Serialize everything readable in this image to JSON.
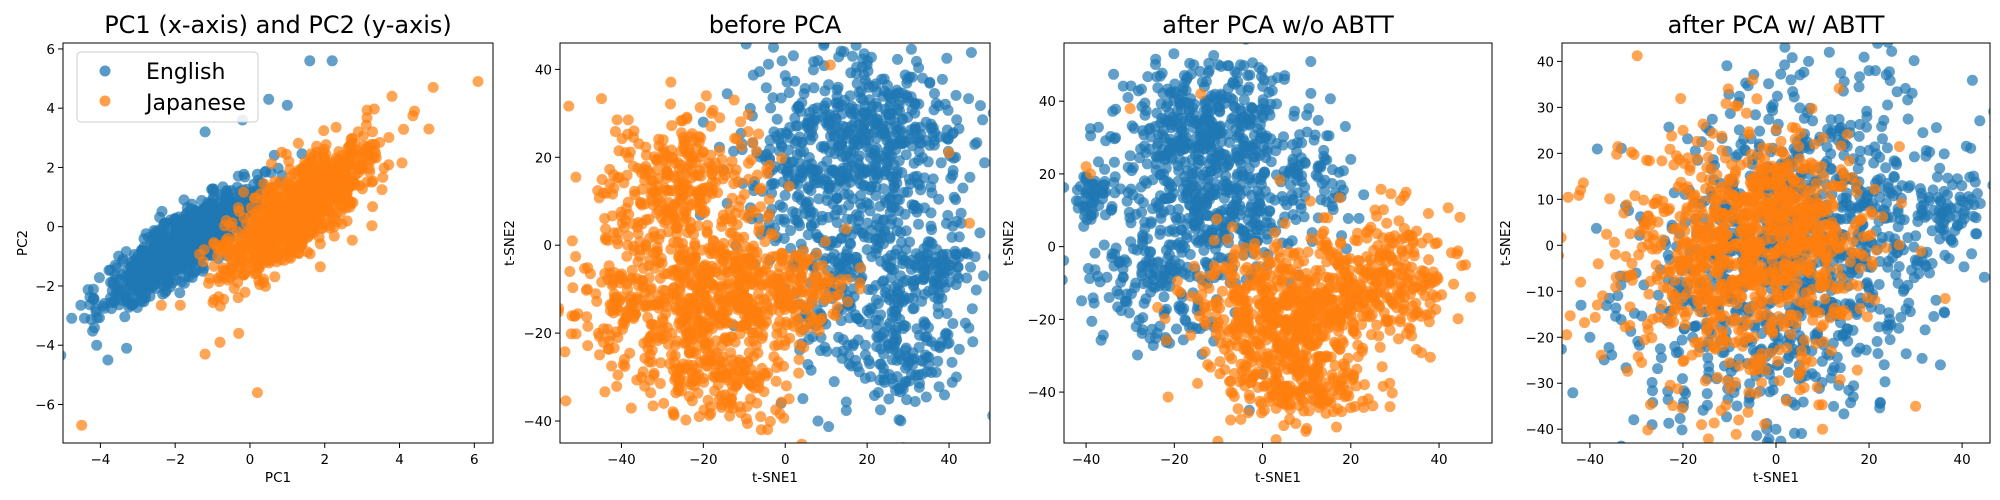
{
  "colors": {
    "english": "#1f77b4",
    "japanese": "#ff7f0e"
  },
  "chart_data": [
    {
      "type": "scatter",
      "title": "PC1 (x-axis) and PC2 (y-axis)",
      "xlabel": "PC1",
      "ylabel": "PC2",
      "xlim": [
        -5,
        6.5
      ],
      "ylim": [
        -7.3,
        6.2
      ],
      "xticks": [
        -4,
        -2,
        0,
        2,
        4,
        6
      ],
      "yticks": [
        -6,
        -4,
        -2,
        0,
        2,
        4,
        6
      ],
      "legend": {
        "position": "upper-left",
        "entries": [
          "English",
          "Japanese"
        ]
      },
      "series": [
        {
          "name": "English",
          "color": "#1f77b4",
          "clusters": [
            {
              "cx": -1.8,
              "cy": -0.6,
              "sx": 1.0,
              "sy": 1.0,
              "corr": 0.85,
              "n": 950
            }
          ],
          "points": [
            [
              -4.1,
              -4.0
            ],
            [
              -3.8,
              -4.5
            ],
            [
              -3.6,
              -1.3
            ],
            [
              -3.3,
              -4.1
            ],
            [
              0.5,
              4.3
            ],
            [
              1.0,
              4.1
            ],
            [
              2.2,
              5.6
            ],
            [
              1.6,
              5.6
            ],
            [
              -1.2,
              3.2
            ],
            [
              -0.2,
              3.6
            ]
          ]
        },
        {
          "name": "Japanese",
          "color": "#ff7f0e",
          "clusters": [
            {
              "cx": 1.3,
              "cy": 0.6,
              "sx": 1.0,
              "sy": 1.15,
              "corr": 0.8,
              "n": 1000
            }
          ],
          "points": [
            [
              -4.5,
              -6.7
            ],
            [
              6.1,
              4.9
            ],
            [
              4.9,
              4.7
            ],
            [
              -1.2,
              -4.3
            ],
            [
              -0.8,
              -3.9
            ],
            [
              -0.3,
              -3.6
            ],
            [
              0.2,
              -5.6
            ],
            [
              3.8,
              4.4
            ],
            [
              4.4,
              3.9
            ]
          ]
        }
      ]
    },
    {
      "type": "scatter",
      "title": "before PCA",
      "xlabel": "t-SNE1",
      "ylabel": "t-SNE2",
      "xlim": [
        -55,
        50
      ],
      "ylim": [
        -45,
        46
      ],
      "xticks": [
        -40,
        -20,
        0,
        20,
        40
      ],
      "yticks": [
        -40,
        -20,
        0,
        20,
        40
      ],
      "series": [
        {
          "name": "English",
          "color": "#1f77b4",
          "clusters": [
            {
              "cx": 22,
              "cy": 25,
              "sx": 10,
              "sy": 9,
              "corr": 0,
              "n": 380
            },
            {
              "cx": 20,
              "cy": -5,
              "sx": 12,
              "sy": 13,
              "corr": 0,
              "n": 420
            },
            {
              "cx": 2,
              "cy": 20,
              "sx": 7,
              "sy": 11,
              "corr": 0,
              "n": 180
            },
            {
              "cx": 38,
              "cy": -5,
              "sx": 4,
              "sy": 4,
              "corr": 0,
              "n": 60
            },
            {
              "cx": 30,
              "cy": -25,
              "sx": 6,
              "sy": 6,
              "corr": 0,
              "n": 90
            }
          ],
          "points": [
            [
              8,
              42
            ],
            [
              20,
              41
            ],
            [
              -1,
              -36
            ],
            [
              8,
              -40
            ],
            [
              -15,
              17
            ],
            [
              -20,
              28
            ],
            [
              43,
              5
            ],
            [
              41,
              17
            ]
          ]
        },
        {
          "name": "Japanese",
          "color": "#ff7f0e",
          "clusters": [
            {
              "cx": -25,
              "cy": 12,
              "sx": 9,
              "sy": 9,
              "corr": 0,
              "n": 340
            },
            {
              "cx": -15,
              "cy": -12,
              "sx": 9,
              "sy": 8,
              "corr": 0,
              "n": 380
            },
            {
              "cx": -38,
              "cy": -15,
              "sx": 8,
              "sy": 10,
              "corr": 0,
              "n": 200
            },
            {
              "cx": -15,
              "cy": -30,
              "sx": 9,
              "sy": 6,
              "corr": 0,
              "n": 160
            },
            {
              "cx": 3,
              "cy": -10,
              "sx": 6,
              "sy": 5,
              "corr": 0,
              "n": 120
            }
          ],
          "points": [
            [
              -18,
              30
            ],
            [
              -16,
              29
            ],
            [
              11,
              41
            ],
            [
              -52,
              1
            ],
            [
              40,
              21
            ],
            [
              45,
              5
            ],
            [
              -21,
              -39
            ],
            [
              -6,
              -39
            ]
          ]
        }
      ]
    },
    {
      "type": "scatter",
      "title": "after PCA w/o ABTT",
      "xlabel": "t-SNE1",
      "ylabel": "t-SNE2",
      "xlim": [
        -45,
        52
      ],
      "ylim": [
        -54,
        56
      ],
      "xticks": [
        -40,
        -20,
        0,
        20,
        40
      ],
      "yticks": [
        -40,
        -20,
        0,
        20,
        40
      ],
      "series": [
        {
          "name": "English",
          "color": "#1f77b4",
          "clusters": [
            {
              "cx": -12,
              "cy": 32,
              "sx": 11,
              "sy": 10,
              "corr": 0,
              "n": 420
            },
            {
              "cx": -10,
              "cy": 8,
              "sx": 10,
              "sy": 9,
              "corr": 0,
              "n": 300
            },
            {
              "cx": -38,
              "cy": 14,
              "sx": 3,
              "sy": 4,
              "corr": 0,
              "n": 60
            },
            {
              "cx": -24,
              "cy": -10,
              "sx": 8,
              "sy": 8,
              "corr": 0,
              "n": 160
            },
            {
              "cx": 12,
              "cy": 18,
              "sx": 6,
              "sy": 6,
              "corr": 0,
              "n": 60
            }
          ],
          "points": [
            [
              -10,
              50
            ],
            [
              -5,
              50
            ],
            [
              -30,
              25
            ],
            [
              -22,
              -25
            ],
            [
              0,
              -35
            ],
            [
              -3,
              -45
            ],
            [
              20,
              24
            ]
          ]
        },
        {
          "name": "Japanese",
          "color": "#ff7f0e",
          "clusters": [
            {
              "cx": 5,
              "cy": -20,
              "sx": 10,
              "sy": 11,
              "corr": 0,
              "n": 600
            },
            {
              "cx": 28,
              "cy": -8,
              "sx": 8,
              "sy": 9,
              "corr": 0,
              "n": 260
            },
            {
              "cx": 10,
              "cy": -40,
              "sx": 8,
              "sy": 5,
              "corr": 0,
              "n": 120
            }
          ],
          "points": [
            [
              -40,
              22
            ],
            [
              -39,
              20
            ],
            [
              -30,
              38
            ],
            [
              -14,
              42
            ],
            [
              44,
              -2
            ],
            [
              46,
              -5
            ],
            [
              10,
              -50
            ],
            [
              -8,
              2
            ]
          ]
        }
      ]
    },
    {
      "type": "scatter",
      "title": "after PCA w/ ABTT",
      "xlabel": "t-SNE1",
      "ylabel": "t-SNE2",
      "xlim": [
        -46,
        46
      ],
      "ylim": [
        -43,
        44
      ],
      "xticks": [
        -40,
        -20,
        0,
        20,
        40
      ],
      "yticks": [
        -40,
        -30,
        -20,
        -10,
        0,
        10,
        20,
        30,
        40
      ],
      "series": [
        {
          "name": "English",
          "color": "#1f77b4",
          "clusters": [
            {
              "cx": 10,
              "cy": 8,
              "sx": 15,
              "sy": 15,
              "corr": 0,
              "n": 650
            },
            {
              "cx": -5,
              "cy": -15,
              "sx": 15,
              "sy": 14,
              "corr": 0,
              "n": 400
            },
            {
              "cx": 38,
              "cy": 8,
              "sx": 4,
              "sy": 4,
              "corr": 0,
              "n": 50
            }
          ],
          "points": [
            [
              7,
              40
            ],
            [
              20,
              38
            ],
            [
              -40,
              -20
            ],
            [
              0,
              -40
            ],
            [
              -2,
              -40
            ],
            [
              42,
              10
            ],
            [
              43,
              6
            ]
          ]
        },
        {
          "name": "Japanese",
          "color": "#ff7f0e",
          "clusters": [
            {
              "cx": -8,
              "cy": -3,
              "sx": 14,
              "sy": 13,
              "corr": 0,
              "n": 700
            },
            {
              "cx": 2,
              "cy": 5,
              "sx": 8,
              "sy": 8,
              "corr": 0,
              "n": 300
            }
          ],
          "points": [
            [
              -42,
              12
            ],
            [
              -42,
              -8
            ],
            [
              -5,
              36
            ],
            [
              -8,
              -38
            ],
            [
              10,
              -40
            ],
            [
              -16,
              -39
            ],
            [
              -20,
              25
            ],
            [
              30,
              -35
            ]
          ]
        }
      ]
    }
  ]
}
